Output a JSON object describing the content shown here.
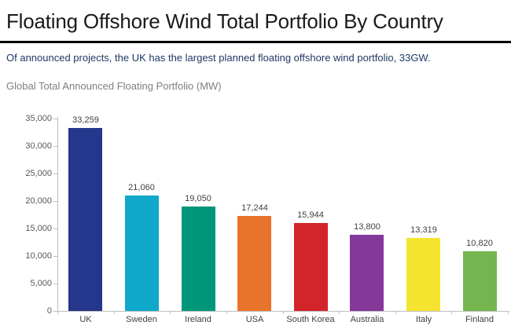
{
  "page": {
    "title": "Floating Offshore Wind Total Portfolio By Country",
    "subtitle": "Of announced projects, the UK has the largest planned floating offshore wind portfolio, 33GW.",
    "chart_heading": "Global Total Announced Floating Portfolio (MW)"
  },
  "chart_data": {
    "type": "bar",
    "title": "Global Total Announced Floating Portfolio (MW)",
    "categories": [
      "UK",
      "Sweden",
      "Ireland",
      "USA",
      "South Korea",
      "Australia",
      "Italy",
      "Finland"
    ],
    "values": [
      33259,
      21060,
      19050,
      17244,
      15944,
      13800,
      13319,
      10820
    ],
    "value_labels": [
      "33,259",
      "21,060",
      "19,050",
      "17,244",
      "15,944",
      "13,800",
      "13,319",
      "10,820"
    ],
    "bar_colors": [
      "#25378C",
      "#10A8CB",
      "#00967B",
      "#E8742B",
      "#D3242B",
      "#84389A",
      "#F5E42F",
      "#75B54F"
    ],
    "xlabel": "",
    "ylabel": "",
    "ylim": [
      0,
      35000
    ],
    "ytick_step": 5000,
    "ytick_labels": [
      "0",
      "5,000",
      "10,000",
      "15,000",
      "20,000",
      "25,000",
      "30,000",
      "35,000"
    ],
    "grid": false,
    "legend_position": "none"
  },
  "colors": {
    "title_text": "#1a1a1a",
    "subtitle_text": "#1F3864",
    "chart_heading_text": "#7F7F7F",
    "axis_line": "#C0C0C0",
    "ytick_label_text": "#595959",
    "value_label_text": "#3F3F3F",
    "category_label_text": "#404040",
    "title_rule": "#000000"
  }
}
